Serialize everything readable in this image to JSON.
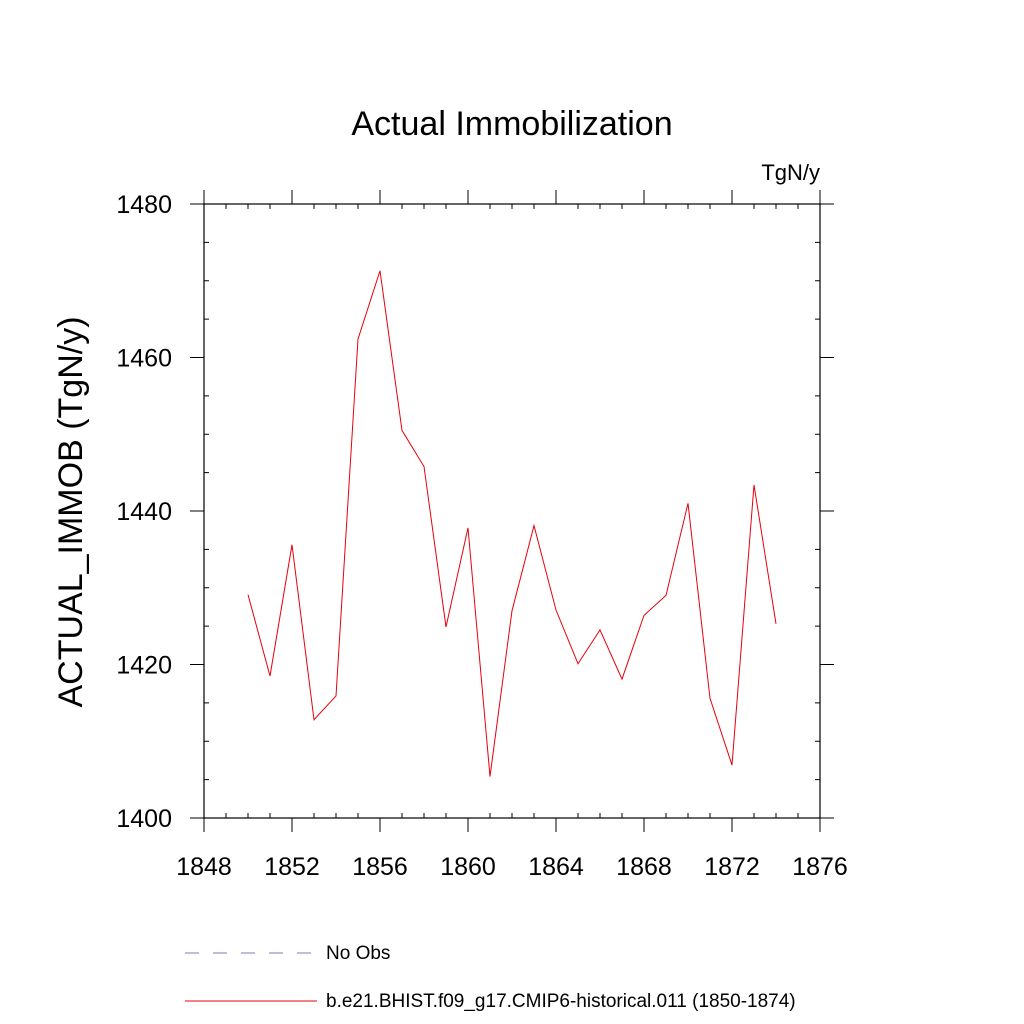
{
  "chart_data": {
    "type": "line",
    "title": "Actual Immobilization",
    "units_label": "TgN/y",
    "ylabel": "ACTUAL_IMMOB  (TgN/y)",
    "xlabel": "",
    "xlim": [
      1848,
      1876
    ],
    "ylim": [
      1400,
      1480
    ],
    "x_major_ticks": [
      1848,
      1852,
      1856,
      1860,
      1864,
      1868,
      1872,
      1876
    ],
    "x_tick_labels": [
      "1848",
      "1852",
      "1856",
      "1860",
      "1864",
      "1868",
      "1872",
      "1876"
    ],
    "y_major_ticks": [
      1400,
      1420,
      1440,
      1460,
      1480
    ],
    "y_tick_labels": [
      "1400",
      "1420",
      "1440",
      "1460",
      "1480"
    ],
    "x_minor_step": 1,
    "y_minor_step": 5,
    "grid": false,
    "legend_placement": "bottom",
    "series": [
      {
        "name": "No Obs",
        "color": "#7a7ab8",
        "style": "dashed",
        "x": [],
        "values": []
      },
      {
        "name": "b.e21.BHIST.f09_g17.CMIP6-historical.011 (1850-1874)",
        "color": "#e8000b",
        "style": "solid",
        "x": [
          1850,
          1851,
          1852,
          1853,
          1854,
          1855,
          1856,
          1857,
          1858,
          1859,
          1860,
          1861,
          1862,
          1863,
          1864,
          1865,
          1866,
          1867,
          1868,
          1869,
          1870,
          1871,
          1872,
          1873,
          1874
        ],
        "values": [
          1429.1,
          1418.5,
          1435.6,
          1412.8,
          1415.9,
          1462.4,
          1471.3,
          1450.5,
          1445.8,
          1424.9,
          1437.8,
          1405.4,
          1427.0,
          1438.1,
          1427.1,
          1420.1,
          1424.5,
          1418.1,
          1426.4,
          1429.0,
          1441.0,
          1415.6,
          1406.9,
          1443.4,
          1425.3
        ]
      }
    ]
  }
}
